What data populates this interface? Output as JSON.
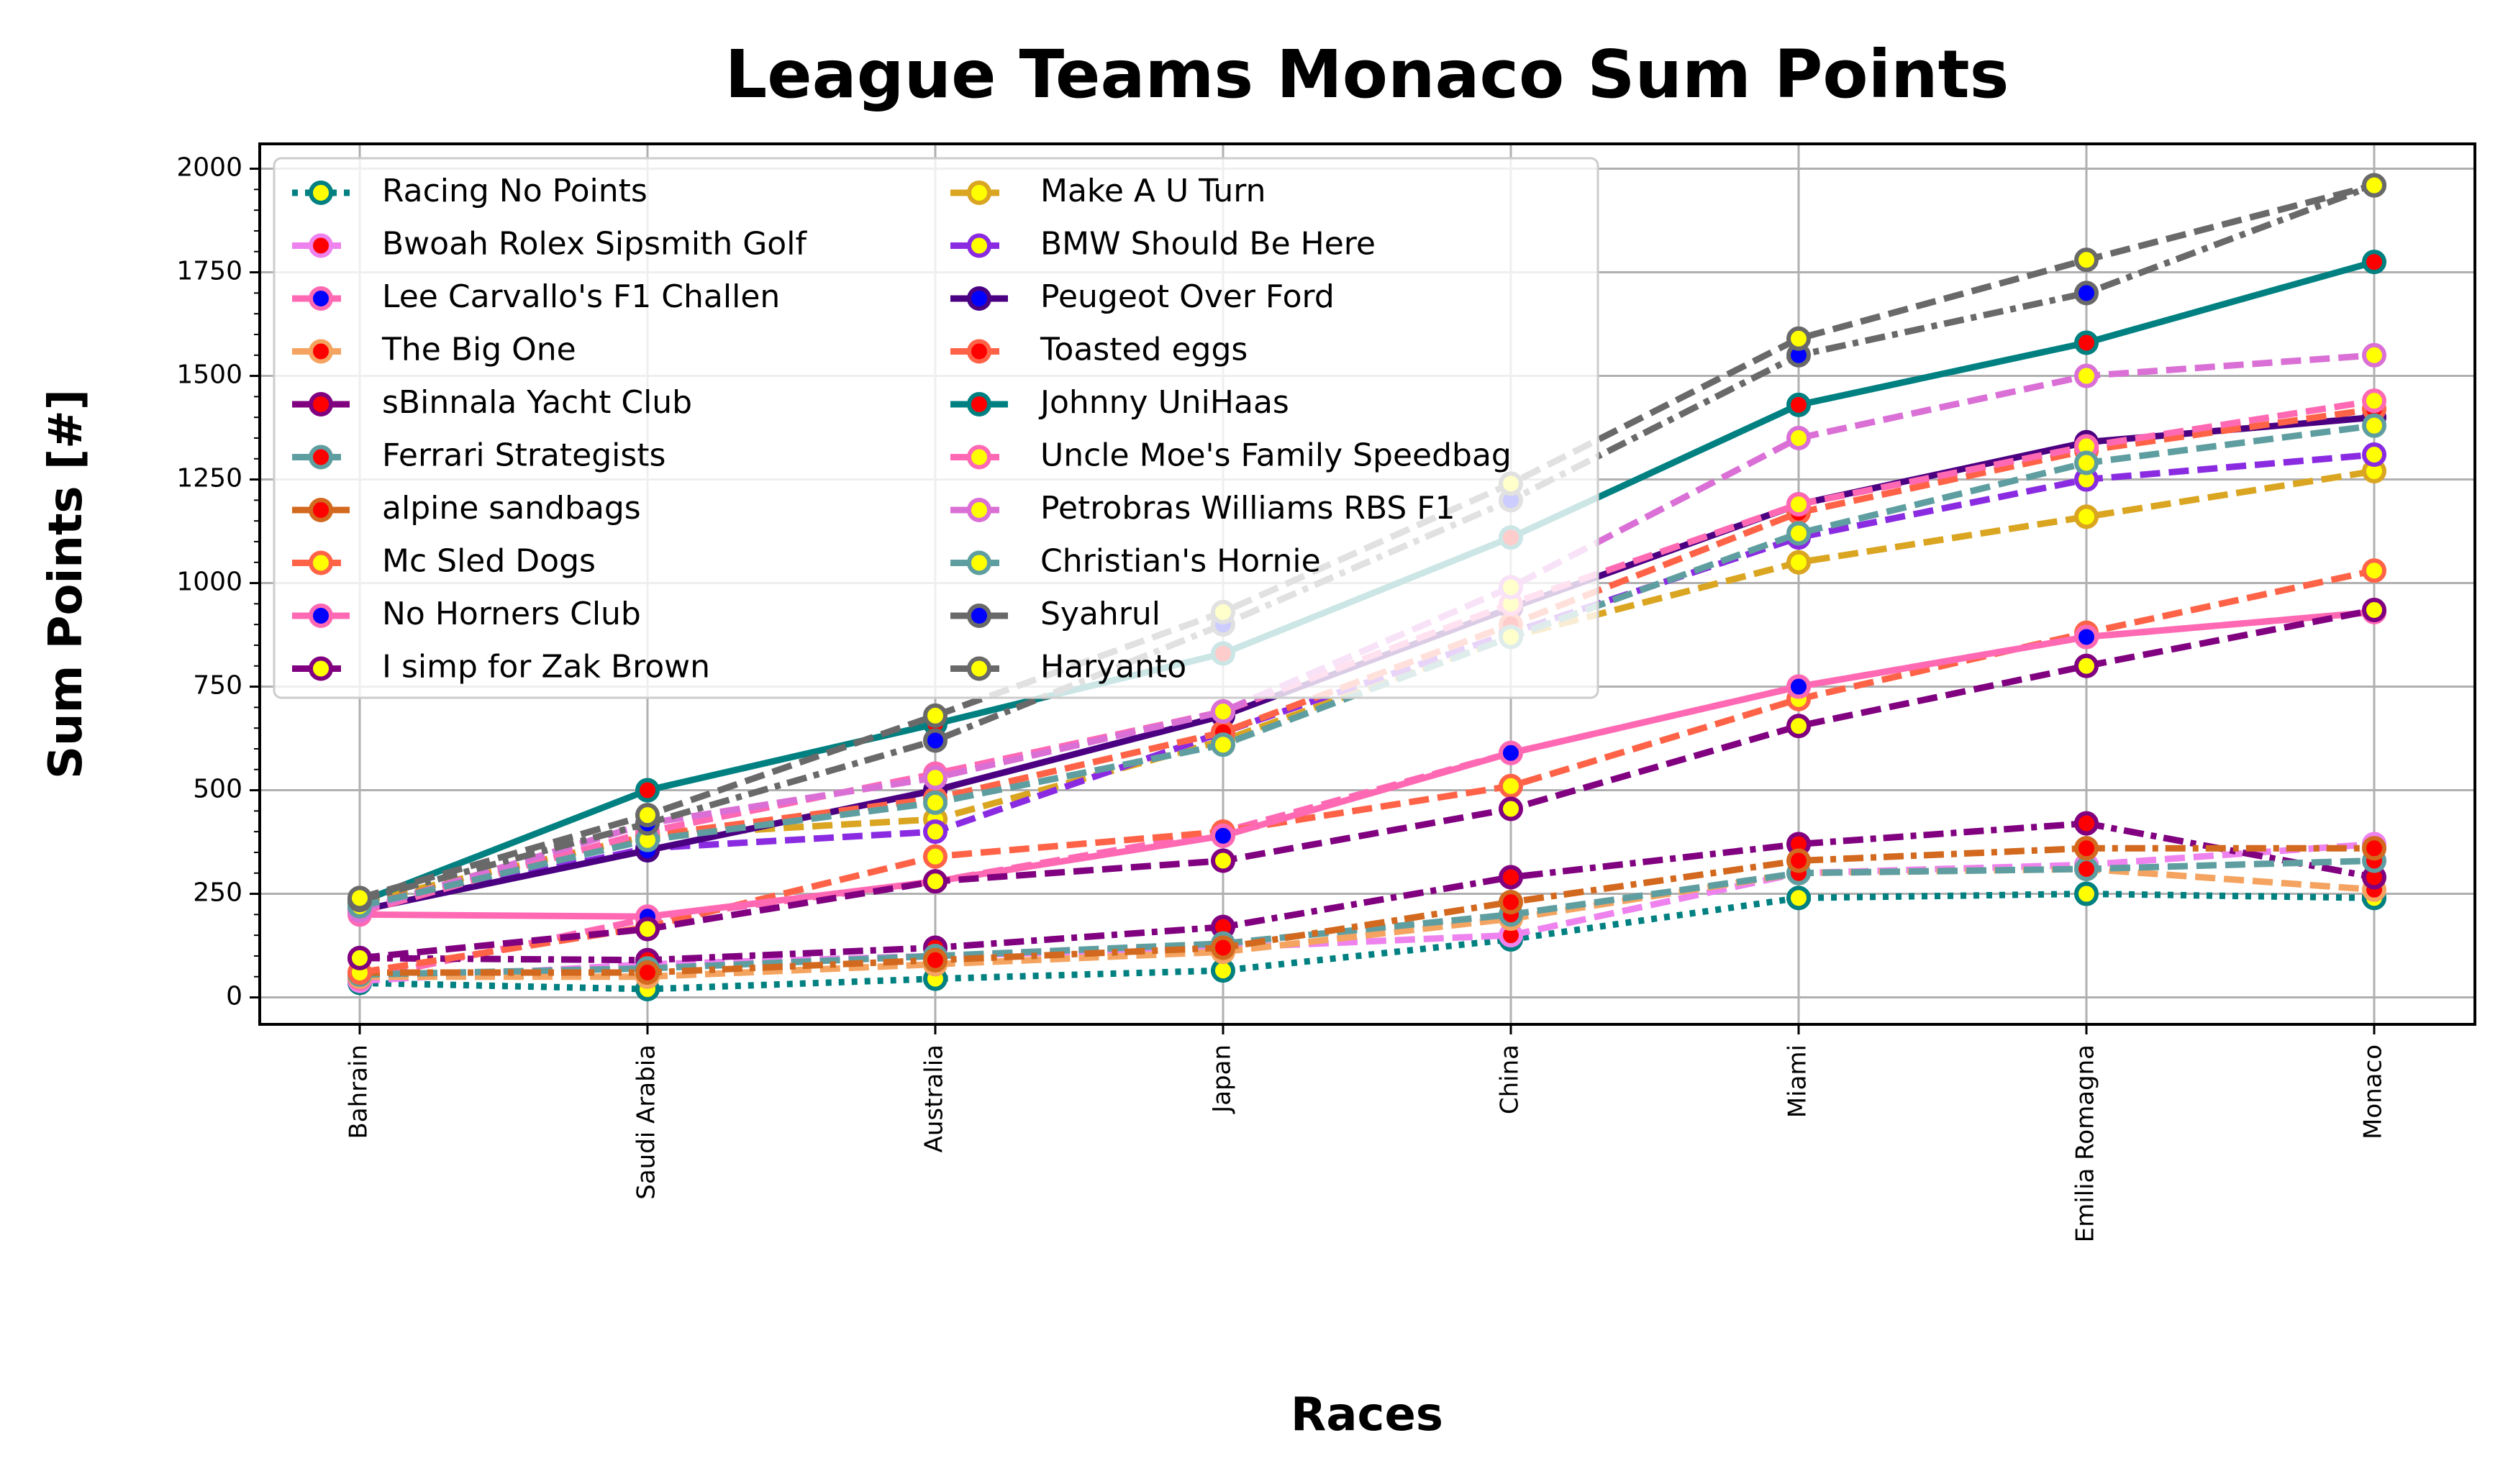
{
  "chart_data": {
    "type": "line",
    "title": "League Teams Monaco Sum Points",
    "xlabel": "Races",
    "ylabel": "Sum Points [#]",
    "categories": [
      "Bahrain",
      "Saudi Arabia",
      "Australia",
      "Japan",
      "China",
      "Miami",
      "Emilia Romagna",
      "Monaco"
    ],
    "ylim": [
      -65,
      2060
    ],
    "yticks": [
      "0",
      "250",
      "500",
      "750",
      "1000",
      "1250",
      "1500",
      "1750",
      "2000"
    ],
    "grid": true,
    "legend_position": "upper-left",
    "series": [
      {
        "name": "Racing No Points",
        "color": "#008080",
        "dash": "dotted",
        "marker_fill": "#ffff00",
        "values": [
          35,
          20,
          45,
          65,
          140,
          240,
          250,
          240
        ]
      },
      {
        "name": "Bwoah Rolex Sipsmith Golf",
        "color": "#ee82ee",
        "dash": "dashed",
        "marker_fill": "#ff0000",
        "values": [
          40,
          80,
          100,
          120,
          150,
          300,
          320,
          370
        ]
      },
      {
        "name": "Lee Carvallo's F1 Challen",
        "color": "#ff69b4",
        "dash": "dashed",
        "marker_fill": "#0000ff",
        "values": [
          45,
          190,
          280,
          400,
          590,
          750,
          870,
          930
        ]
      },
      {
        "name": "The Big One",
        "color": "#f4a460",
        "dash": "dashed",
        "marker_fill": "#ff0000",
        "values": [
          50,
          50,
          80,
          110,
          190,
          300,
          310,
          260
        ]
      },
      {
        "name": "sBinnala Yacht Club",
        "color": "#800080",
        "dash": "dashdot",
        "marker_fill": "#ff0000",
        "values": [
          95,
          90,
          120,
          170,
          290,
          370,
          420,
          290
        ]
      },
      {
        "name": "Ferrari Strategists",
        "color": "#5f9ea0",
        "dash": "dashed",
        "marker_fill": "#ff0000",
        "values": [
          55,
          70,
          100,
          130,
          200,
          300,
          310,
          330
        ]
      },
      {
        "name": "alpine sandbags",
        "color": "#d2691e",
        "dash": "dashdot",
        "marker_fill": "#ff0000",
        "values": [
          60,
          60,
          90,
          120,
          230,
          330,
          360,
          360
        ]
      },
      {
        "name": "Mc Sled Dogs",
        "color": "#ff6347",
        "dash": "dashed",
        "marker_fill": "#ffff00",
        "values": [
          60,
          170,
          340,
          400,
          510,
          720,
          880,
          1030
        ]
      },
      {
        "name": "No Horners Club",
        "color": "#ff69b4",
        "dash": "solid",
        "marker_fill": "#0000ff",
        "values": [
          200,
          195,
          280,
          390,
          590,
          750,
          870,
          930
        ]
      },
      {
        "name": "I simp for Zak Brown",
        "color": "#800080",
        "dash": "dashed",
        "marker_fill": "#ffff00",
        "values": [
          95,
          165,
          280,
          330,
          455,
          655,
          800,
          935
        ]
      },
      {
        "name": "Make A U Turn",
        "color": "#daa520",
        "dash": "dashed",
        "marker_fill": "#ffff00",
        "values": [
          230,
          390,
          430,
          620,
          870,
          1050,
          1160,
          1270
        ]
      },
      {
        "name": "BMW Should Be Here",
        "color": "#8a2be2",
        "dash": "dashed",
        "marker_fill": "#ffff00",
        "values": [
          215,
          360,
          400,
          640,
          880,
          1110,
          1250,
          1310
        ]
      },
      {
        "name": "Peugeot Over Ford",
        "color": "#4b0082",
        "dash": "solid",
        "marker_fill": "#0000ff",
        "values": [
          210,
          355,
          500,
          680,
          940,
          1190,
          1340,
          1400
        ]
      },
      {
        "name": "Toasted eggs",
        "color": "#ff6347",
        "dash": "dashed",
        "marker_fill": "#ff0000",
        "values": [
          220,
          390,
          480,
          640,
          900,
          1170,
          1320,
          1420
        ]
      },
      {
        "name": "Johnny UniHaas",
        "color": "#008080",
        "dash": "solid",
        "marker_fill": "#ff0000",
        "values": [
          230,
          500,
          660,
          830,
          1110,
          1430,
          1580,
          1775
        ]
      },
      {
        "name": "Uncle Moe's Family Speedbag",
        "color": "#ff69b4",
        "dash": "dashed",
        "marker_fill": "#ffff00",
        "values": [
          205,
          400,
          540,
          690,
          950,
          1190,
          1330,
          1440
        ]
      },
      {
        "name": "Petrobras Williams RBS F1",
        "color": "#da70d6",
        "dash": "dashed",
        "marker_fill": "#ffff00",
        "values": [
          210,
          420,
          530,
          690,
          990,
          1350,
          1500,
          1550
        ]
      },
      {
        "name": "Christian's Hornie",
        "color": "#5f9ea0",
        "dash": "dashed",
        "marker_fill": "#ffff00",
        "values": [
          220,
          380,
          470,
          610,
          870,
          1120,
          1290,
          1380
        ]
      },
      {
        "name": "Syahrul",
        "color": "#696969",
        "dash": "dashdot",
        "marker_fill": "#0000ff",
        "values": [
          235,
          420,
          620,
          900,
          1200,
          1550,
          1700,
          1960
        ]
      },
      {
        "name": "Haryanto",
        "color": "#696969",
        "dash": "dashed",
        "marker_fill": "#ffff00",
        "values": [
          240,
          440,
          680,
          930,
          1240,
          1590,
          1780,
          1960
        ]
      }
    ]
  }
}
